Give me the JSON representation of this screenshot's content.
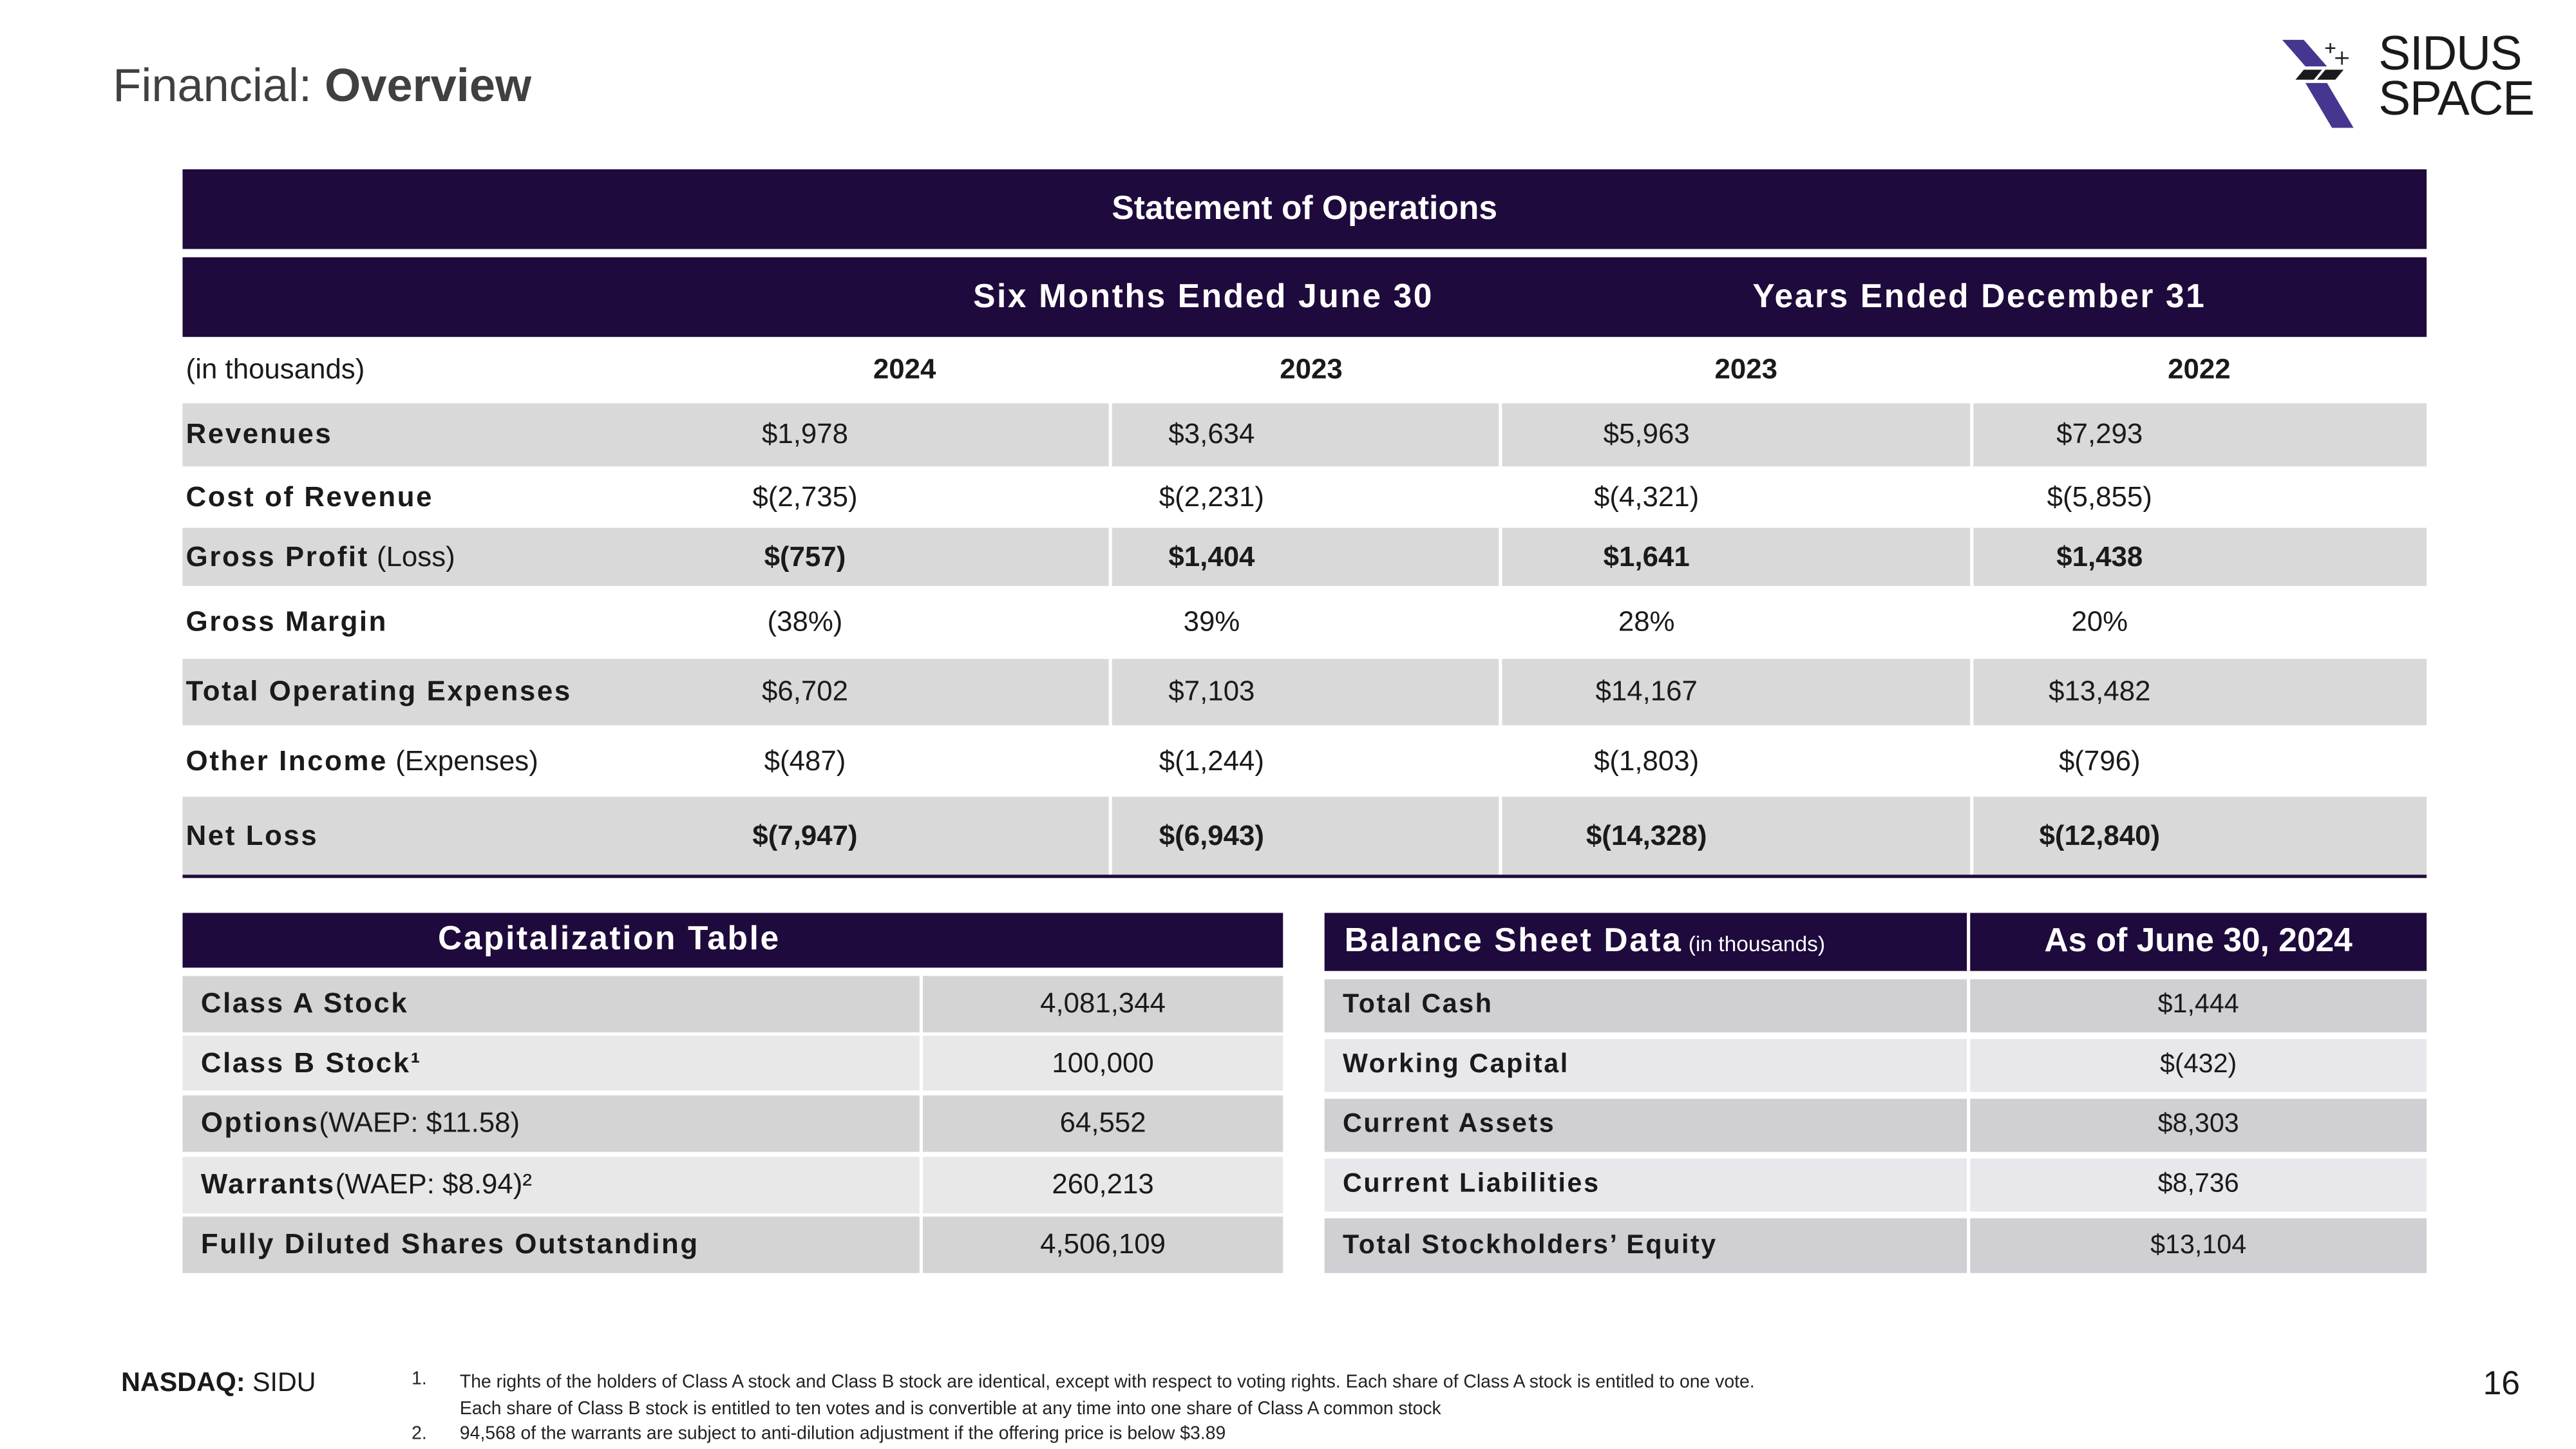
{
  "title": {
    "prefix": "Financial: ",
    "bold": "Overview"
  },
  "logo": {
    "line1": "SIDUS",
    "line2": "SPACE"
  },
  "ops": {
    "title": "Statement of Operations",
    "group1": "Six Months Ended June 30",
    "group2": "Years Ended December 31",
    "unit": "(in thousands)",
    "years": [
      "2024",
      "2023",
      "2023",
      "2022"
    ],
    "rows": [
      {
        "label": "Revenues",
        "suffix": "",
        "values": [
          "$1,978",
          "$3,634",
          "$5,963",
          "$7,293"
        ],
        "bold": false
      },
      {
        "label": "Cost of Revenue",
        "suffix": "",
        "values": [
          "$(2,735)",
          "$(2,231)",
          "$(4,321)",
          "$(5,855)"
        ],
        "bold": false
      },
      {
        "label": "Gross Profit",
        "suffix": " (Loss)",
        "values": [
          "$(757)",
          "$1,404",
          "$1,641",
          "$1,438"
        ],
        "bold": true
      },
      {
        "label": "Gross Margin",
        "suffix": "",
        "values": [
          "(38%)",
          "39%",
          "28%",
          "20%"
        ],
        "bold": false
      },
      {
        "label": "Total Operating Expenses",
        "suffix": "",
        "values": [
          "$6,702",
          "$7,103",
          "$14,167",
          "$13,482"
        ],
        "bold": false
      },
      {
        "label": "Other Income",
        "suffix": " (Expenses)",
        "values": [
          "$(487)",
          "$(1,244)",
          "$(1,803)",
          "$(796)"
        ],
        "bold": false
      },
      {
        "label": "Net Loss",
        "suffix": "",
        "values": [
          "$(7,947)",
          "$(6,943)",
          "$(14,328)",
          "$(12,840)"
        ],
        "bold": true
      }
    ]
  },
  "cap": {
    "title": "Capitalization Table",
    "rows": [
      {
        "label": "Class A Stock",
        "suffix": "",
        "value": "4,081,344"
      },
      {
        "label": "Class B Stock¹",
        "suffix": "",
        "value": "100,000"
      },
      {
        "label": "Options",
        "suffix": " (WAEP: $11.58)",
        "value": "64,552"
      },
      {
        "label": "Warrants",
        "suffix": " (WAEP: $8.94)²",
        "value": "260,213"
      },
      {
        "label": "Fully Diluted Shares Outstanding",
        "suffix": "",
        "value": "4,506,109"
      }
    ]
  },
  "balance": {
    "title": "Balance Sheet Data",
    "unit": " (in thousands)",
    "asof": "As of  June 30, 2024",
    "rows": [
      {
        "label": "Total Cash",
        "value": "$1,444"
      },
      {
        "label": "Working Capital",
        "value": "$(432)"
      },
      {
        "label": "Current Assets",
        "value": "$8,303"
      },
      {
        "label": "Current Liabilities",
        "value": "$8,736"
      },
      {
        "label": "Total Stockholders’ Equity",
        "value": "$13,104"
      }
    ]
  },
  "footer": {
    "ticker_label": "NASDAQ:",
    "ticker": " SIDU",
    "notes": [
      {
        "num": "1.",
        "text": "The rights of the holders of Class A stock and Class B stock are identical, except with respect to voting rights. Each share of Class A stock is  entitled to one vote.",
        "text2": "Each share of Class B stock is entitled to ten votes and is convertible at any time into one share of Class A common stock"
      },
      {
        "num": "2.",
        "text": "94,568 of the warrants are subject to anti-dilution adjustment if the offering price is below $3.89"
      }
    ],
    "page": "16"
  }
}
